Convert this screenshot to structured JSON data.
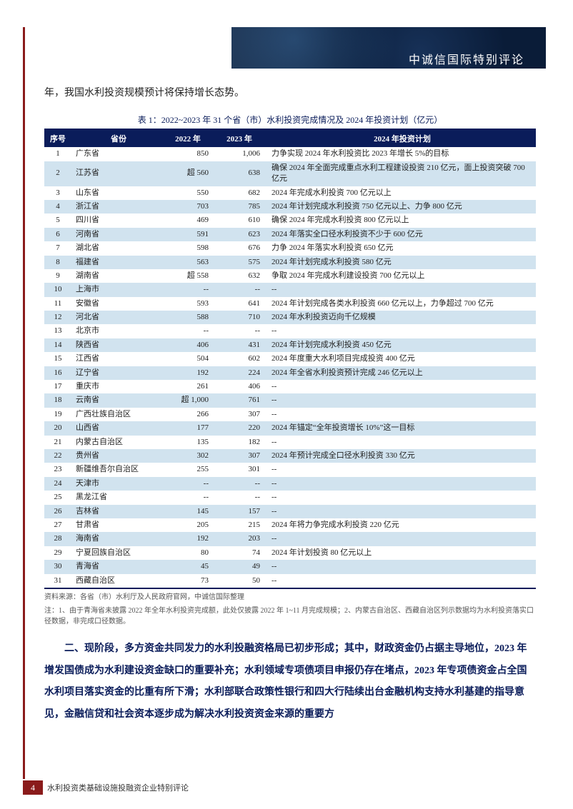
{
  "header": {
    "title": "中诚信国际特别评论"
  },
  "intro": "年，我国水利投资规模预计将保持增长态势。",
  "table": {
    "caption": "表 1：2022~2023 年 31 个省（市）水利投资完成情况及 2024 年投资计划（亿元）",
    "columns": {
      "idx": "序号",
      "prov": "省份",
      "y2022": "2022 年",
      "y2023": "2023 年",
      "plan": "2024 年投资计划"
    },
    "rows": [
      {
        "idx": "1",
        "prov": "广东省",
        "y1": "850",
        "y2": "1,006",
        "plan": "力争实现 2024 年水利投资比 2023 年增长 5%的目标"
      },
      {
        "idx": "2",
        "prov": "江苏省",
        "y1": "超 560",
        "y2": "638",
        "plan": "确保 2024 年全面完成重点水利工程建设投资 210 亿元，面上投资突破 700 亿元"
      },
      {
        "idx": "3",
        "prov": "山东省",
        "y1": "550",
        "y2": "682",
        "plan": "2024 年完成水利投资 700 亿元以上"
      },
      {
        "idx": "4",
        "prov": "浙江省",
        "y1": "703",
        "y2": "785",
        "plan": "2024 年计划完成水利投资 750 亿元以上、力争 800 亿元"
      },
      {
        "idx": "5",
        "prov": "四川省",
        "y1": "469",
        "y2": "610",
        "plan": "确保 2024 年完成水利投资 800 亿元以上"
      },
      {
        "idx": "6",
        "prov": "河南省",
        "y1": "591",
        "y2": "623",
        "plan": "2024 年落实全口径水利投资不少于 600 亿元"
      },
      {
        "idx": "7",
        "prov": "湖北省",
        "y1": "598",
        "y2": "676",
        "plan": "力争 2024 年落实水利投资 650 亿元"
      },
      {
        "idx": "8",
        "prov": "福建省",
        "y1": "563",
        "y2": "575",
        "plan": "2024 年计划完成水利投资 580 亿元"
      },
      {
        "idx": "9",
        "prov": "湖南省",
        "y1": "超 558",
        "y2": "632",
        "plan": "争取 2024 年完成水利建设投资 700 亿元以上"
      },
      {
        "idx": "10",
        "prov": "上海市",
        "y1": "--",
        "y2": "--",
        "plan": "--"
      },
      {
        "idx": "11",
        "prov": "安徽省",
        "y1": "593",
        "y2": "641",
        "plan": "2024 年计划完成各类水利投资 660 亿元以上，力争超过 700 亿元"
      },
      {
        "idx": "12",
        "prov": "河北省",
        "y1": "588",
        "y2": "710",
        "plan": "2024 年水利投资迈向千亿规模"
      },
      {
        "idx": "13",
        "prov": "北京市",
        "y1": "--",
        "y2": "--",
        "plan": "--"
      },
      {
        "idx": "14",
        "prov": "陕西省",
        "y1": "406",
        "y2": "431",
        "plan": "2024 年计划完成水利投资 450 亿元"
      },
      {
        "idx": "15",
        "prov": "江西省",
        "y1": "504",
        "y2": "602",
        "plan": "2024 年度重大水利项目完成投资 400 亿元"
      },
      {
        "idx": "16",
        "prov": "辽宁省",
        "y1": "192",
        "y2": "224",
        "plan": "2024 年全省水利投资预计完成 246 亿元以上"
      },
      {
        "idx": "17",
        "prov": "重庆市",
        "y1": "261",
        "y2": "406",
        "plan": "--"
      },
      {
        "idx": "18",
        "prov": "云南省",
        "y1": "超 1,000",
        "y2": "761",
        "plan": "--"
      },
      {
        "idx": "19",
        "prov": "广西壮族自治区",
        "y1": "266",
        "y2": "307",
        "plan": "--"
      },
      {
        "idx": "20",
        "prov": "山西省",
        "y1": "177",
        "y2": "220",
        "plan": "2024 年锚定“全年投资增长 10%”这一目标"
      },
      {
        "idx": "21",
        "prov": "内蒙古自治区",
        "y1": "135",
        "y2": "182",
        "plan": "--"
      },
      {
        "idx": "22",
        "prov": "贵州省",
        "y1": "302",
        "y2": "307",
        "plan": "2024 年预计完成全口径水利投资 330 亿元"
      },
      {
        "idx": "23",
        "prov": "新疆维吾尔自治区",
        "y1": "255",
        "y2": "301",
        "plan": "--"
      },
      {
        "idx": "24",
        "prov": "天津市",
        "y1": "--",
        "y2": "--",
        "plan": "--"
      },
      {
        "idx": "25",
        "prov": "黑龙江省",
        "y1": "--",
        "y2": "--",
        "plan": "--"
      },
      {
        "idx": "26",
        "prov": "吉林省",
        "y1": "145",
        "y2": "157",
        "plan": "--"
      },
      {
        "idx": "27",
        "prov": "甘肃省",
        "y1": "205",
        "y2": "215",
        "plan": "2024 年将力争完成水利投资 220 亿元"
      },
      {
        "idx": "28",
        "prov": "海南省",
        "y1": "192",
        "y2": "203",
        "plan": "--"
      },
      {
        "idx": "29",
        "prov": "宁夏回族自治区",
        "y1": "80",
        "y2": "74",
        "plan": "2024 年计划投资 80 亿元以上"
      },
      {
        "idx": "30",
        "prov": "青海省",
        "y1": "45",
        "y2": "49",
        "plan": "--"
      },
      {
        "idx": "31",
        "prov": "西藏自治区",
        "y1": "73",
        "y2": "50",
        "plan": "--"
      }
    ]
  },
  "source": {
    "line1": "资料来源：各省（市）水利厅及人民政府官网，中诚信国际整理",
    "line2": "注：1、由于青海省未披露 2022 年全年水利投资完成额，此处仅披露 2022 年 1~11 月完成规模；2、内蒙古自治区、西藏自治区列示数据均为水利投资落实口径数据，非完成口径数据。"
  },
  "section": "二、现阶段，多方资金共同发力的水利投融资格局已初步形成；其中，财政资金仍占据主导地位，2023 年增发国债成为水利建设资金缺口的重要补充；水利领域专项债项目申报仍存在堵点，2023 年专项债资金占全国水利项目落实资金的比重有所下滑；水利部联合政策性银行和四大行陆续出台金融机构支持水利基建的指导意见，金融信贷和社会资本逐步成为解决水利投资资金来源的重要方",
  "footer": {
    "page": "4",
    "label": "水利投资类基础设施投融资企业特别评论"
  },
  "style": {
    "header_bg": "#0a1c38",
    "header_text_color": "#ffffff",
    "left_rule_color": "#8a1b1b",
    "table_header_bg": "#0a1c5a",
    "table_even_row_bg": "#d1e3ef",
    "table_odd_row_bg": "#ffffff",
    "section_color": "#0a1c5a",
    "body_text_color": "#222222",
    "source_color": "#555555",
    "table_border_color": "#0a1c5a",
    "footer_badge_bg": "#8a1b1b",
    "footer_badge_text": "#ffffff",
    "fonts": {
      "body": 14,
      "table": 11,
      "caption": 12,
      "source": 10,
      "footer": 11,
      "header_title": 16
    }
  }
}
